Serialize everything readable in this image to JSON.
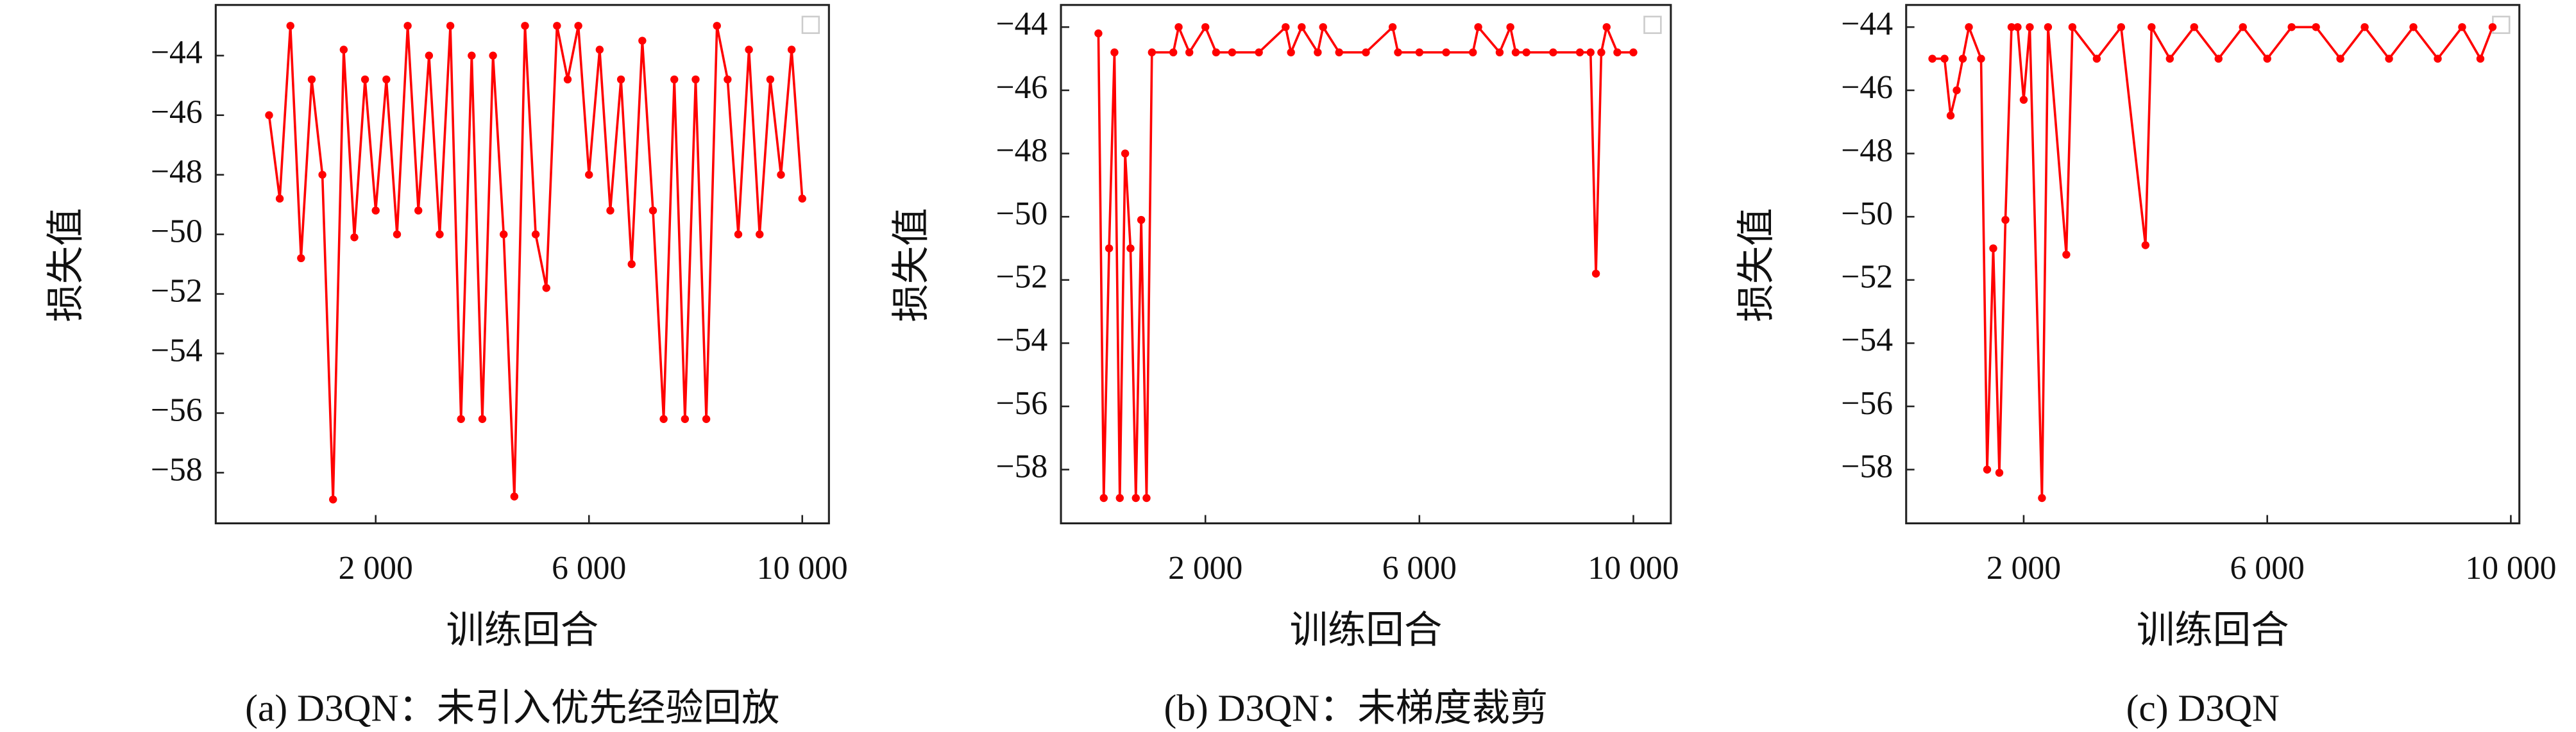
{
  "chart_data": [
    {
      "type": "line",
      "caption": "(a) D3QN：未引入优先经验回放",
      "xlabel": "训练回合",
      "ylabel": "损失值",
      "color": "#ff0000",
      "x": [
        0,
        200,
        400,
        600,
        800,
        1000,
        1200,
        1400,
        1600,
        1800,
        2000,
        2200,
        2400,
        2600,
        2800,
        3000,
        3200,
        3400,
        3600,
        3800,
        4000,
        4200,
        4400,
        4600,
        4800,
        5000,
        5200,
        5400,
        5600,
        5800,
        6000,
        6200,
        6400,
        6600,
        6800,
        7000,
        7200,
        7400,
        7600,
        7800,
        8000,
        8200,
        8400,
        8600,
        8800,
        9000,
        9200,
        9400,
        9600,
        9800,
        10000
      ],
      "values": [
        -46,
        -48.8,
        -43,
        -50.8,
        -44.8,
        -48,
        -58.9,
        -43.8,
        -50.1,
        -44.8,
        -49.2,
        -44.8,
        -50,
        -43,
        -49.2,
        -44,
        -50,
        -43,
        -56.2,
        -44,
        -56.2,
        -44,
        -50,
        -58.8,
        -43,
        -50,
        -51.8,
        -43,
        -44.8,
        -43,
        -48,
        -43.8,
        -49.2,
        -44.8,
        -51,
        -43.5,
        -49.2,
        -56.2,
        -44.8,
        -56.2,
        -44.8,
        -56.2,
        -43,
        -44.8,
        -50,
        -43.8,
        -50,
        -44.8,
        -48,
        -43.8,
        -48.8
      ],
      "xlim": [
        -1000,
        10500
      ],
      "ylim": [
        -59.7,
        -42.3
      ],
      "xticks": [
        {
          "value": 2000,
          "label": "2 000"
        },
        {
          "value": 6000,
          "label": "6 000"
        },
        {
          "value": 10000,
          "label": "10 000"
        }
      ],
      "yticks": [
        {
          "value": -58,
          "label": "−58"
        },
        {
          "value": -56,
          "label": "−56"
        },
        {
          "value": -54,
          "label": "−54"
        },
        {
          "value": -52,
          "label": "−52"
        },
        {
          "value": -50,
          "label": "−50"
        },
        {
          "value": -48,
          "label": "−48"
        },
        {
          "value": -46,
          "label": "−46"
        },
        {
          "value": -44,
          "label": "−44"
        }
      ]
    },
    {
      "type": "line",
      "caption": "(b) D3QN：未梯度裁剪",
      "xlabel": "训练回合",
      "ylabel": "损失值",
      "color": "#ff0000",
      "x": [
        0,
        100,
        200,
        300,
        400,
        500,
        600,
        700,
        800,
        900,
        1000,
        1400,
        1500,
        1700,
        2000,
        2200,
        2500,
        3000,
        3500,
        3600,
        3800,
        4100,
        4200,
        4500,
        5000,
        5500,
        5600,
        6000,
        6500,
        7000,
        7100,
        7500,
        7700,
        7800,
        8000,
        8500,
        9000,
        9200,
        9300,
        9400,
        9500,
        9700,
        10000
      ],
      "values": [
        -44.2,
        -58.9,
        -51,
        -44.8,
        -58.9,
        -48,
        -51,
        -58.9,
        -50.1,
        -58.9,
        -44.8,
        -44.8,
        -44,
        -44.8,
        -44,
        -44.8,
        -44.8,
        -44.8,
        -44,
        -44.8,
        -44,
        -44.8,
        -44,
        -44.8,
        -44.8,
        -44,
        -44.8,
        -44.8,
        -44.8,
        -44.8,
        -44,
        -44.8,
        -44,
        -44.8,
        -44.8,
        -44.8,
        -44.8,
        -44.8,
        -51.8,
        -44.8,
        -44,
        -44.8,
        -44.8
      ],
      "xlim": [
        -700,
        10700
      ],
      "ylim": [
        -59.7,
        -43.3
      ],
      "xticks": [
        {
          "value": 2000,
          "label": "2 000"
        },
        {
          "value": 6000,
          "label": "6 000"
        },
        {
          "value": 10000,
          "label": "10 000"
        }
      ],
      "yticks": [
        {
          "value": -58,
          "label": "−58"
        },
        {
          "value": -56,
          "label": "−56"
        },
        {
          "value": -54,
          "label": "−54"
        },
        {
          "value": -52,
          "label": "−52"
        },
        {
          "value": -50,
          "label": "−50"
        },
        {
          "value": -48,
          "label": "−48"
        },
        {
          "value": -46,
          "label": "−46"
        },
        {
          "value": -44,
          "label": "−44"
        }
      ]
    },
    {
      "type": "line",
      "caption": "(c) D3QN",
      "xlabel": "训练回合",
      "ylabel": "损失值",
      "color": "#ff0000",
      "x": [
        500,
        700,
        800,
        900,
        1000,
        1100,
        1300,
        1400,
        1500,
        1600,
        1700,
        1800,
        1900,
        2000,
        2100,
        2300,
        2400,
        2700,
        2800,
        3200,
        3600,
        4000,
        4100,
        4400,
        4800,
        5200,
        5600,
        6000,
        6400,
        6800,
        7200,
        7600,
        8000,
        8400,
        8800,
        9200,
        9500,
        9700
      ],
      "values": [
        -45,
        -45,
        -46.8,
        -46,
        -45,
        -44,
        -45,
        -58,
        -51,
        -58.1,
        -50.1,
        -44,
        -44,
        -46.3,
        -44,
        -58.9,
        -44,
        -51.2,
        -44,
        -45,
        -44,
        -50.9,
        -44,
        -45,
        -44,
        -45,
        -44,
        -45,
        -44,
        -44,
        -45,
        -44,
        -45,
        -44,
        -45,
        -44,
        -45,
        -44
      ],
      "xlim": [
        70,
        10140
      ],
      "ylim": [
        -59.7,
        -43.3
      ],
      "xticks": [
        {
          "value": 2000,
          "label": "2 000"
        },
        {
          "value": 6000,
          "label": "6 000"
        },
        {
          "value": 10000,
          "label": "10 000"
        }
      ],
      "yticks": [
        {
          "value": -58,
          "label": "−58"
        },
        {
          "value": -56,
          "label": "−56"
        },
        {
          "value": -54,
          "label": "−54"
        },
        {
          "value": -52,
          "label": "−52"
        },
        {
          "value": -50,
          "label": "−50"
        },
        {
          "value": -48,
          "label": "−48"
        },
        {
          "value": -46,
          "label": "−46"
        },
        {
          "value": -44,
          "label": "−44"
        }
      ]
    }
  ]
}
